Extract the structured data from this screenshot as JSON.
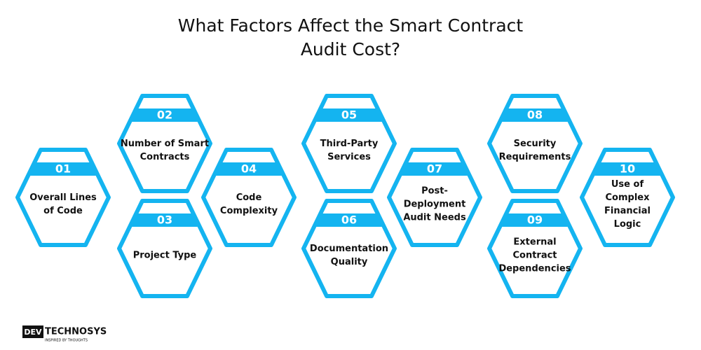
{
  "header": {
    "title_lines": [
      "What Factors Affect the Smart Contract",
      "Audit Cost?"
    ]
  },
  "factors": [
    {
      "number": "01",
      "label_lines": [
        "Overall Lines",
        "of Code"
      ]
    },
    {
      "number": "02",
      "label_lines": [
        "Number of Smart",
        "Contracts"
      ]
    },
    {
      "number": "03",
      "label_lines": [
        "Project Type"
      ]
    },
    {
      "number": "04",
      "label_lines": [
        "Code",
        "Complexity"
      ]
    },
    {
      "number": "05",
      "label_lines": [
        "Third-Party",
        "Services"
      ]
    },
    {
      "number": "06",
      "label_lines": [
        "Documentation",
        "Quality"
      ]
    },
    {
      "number": "07",
      "label_lines": [
        "Post-",
        "Deployment",
        "Audit Needs"
      ]
    },
    {
      "number": "08",
      "label_lines": [
        "Security",
        "Requirements"
      ]
    },
    {
      "number": "09",
      "label_lines": [
        "External",
        "Contract",
        "Dependencies"
      ]
    },
    {
      "number": "10",
      "label_lines": [
        "Use of",
        "Complex",
        "Financial",
        "Logic"
      ]
    }
  ],
  "logo": {
    "mark": "DEV",
    "name": "TECHNOSYS",
    "tagline": "INSPIRED BY THOUGHTS"
  }
}
